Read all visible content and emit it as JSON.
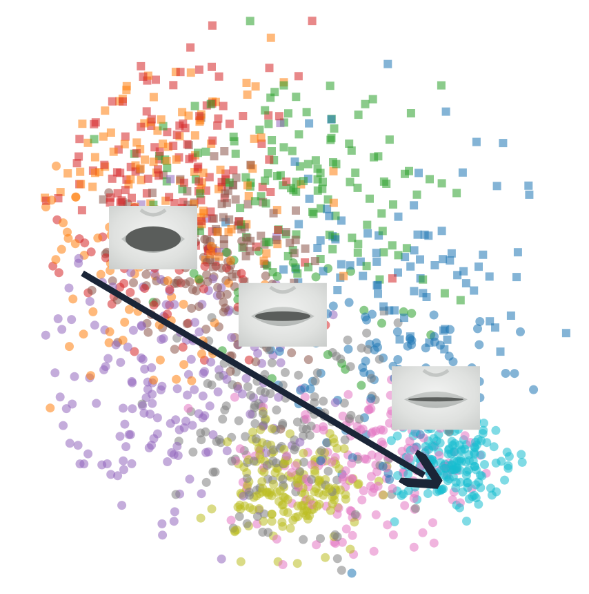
{
  "chart_data": {
    "type": "scatter",
    "title": "",
    "xlabel": "",
    "ylabel": "",
    "grid": false,
    "legend": "none",
    "axes_visible": false,
    "marker_styles": [
      "circle",
      "square"
    ],
    "marker_opacity": 0.55,
    "series": [
      {
        "key": "blue",
        "color": "#1f77b4",
        "center": [
          0.66,
          0.53
        ],
        "spread": [
          0.12,
          0.13
        ]
      },
      {
        "key": "orange",
        "color": "#ff7f0e",
        "center": [
          0.26,
          0.34
        ],
        "spread": [
          0.13,
          0.14
        ]
      },
      {
        "key": "green",
        "color": "#2ca02c",
        "center": [
          0.5,
          0.35
        ],
        "spread": [
          0.12,
          0.14
        ]
      },
      {
        "key": "red",
        "color": "#d62728",
        "center": [
          0.28,
          0.32
        ],
        "spread": [
          0.11,
          0.12
        ]
      },
      {
        "key": "purple",
        "color": "#9467bd",
        "center": [
          0.27,
          0.64
        ],
        "spread": [
          0.12,
          0.13
        ]
      },
      {
        "key": "brown",
        "color": "#8c564b",
        "center": [
          0.37,
          0.45
        ],
        "spread": [
          0.08,
          0.08
        ]
      },
      {
        "key": "pink",
        "color": "#e377c2",
        "center": [
          0.62,
          0.78
        ],
        "spread": [
          0.1,
          0.08
        ]
      },
      {
        "key": "gray",
        "color": "#7f7f7f",
        "center": [
          0.48,
          0.72
        ],
        "spread": [
          0.09,
          0.1
        ]
      },
      {
        "key": "olive",
        "color": "#bcbd22",
        "center": [
          0.5,
          0.82
        ],
        "spread": [
          0.06,
          0.05
        ]
      },
      {
        "key": "cyan",
        "color": "#17becf",
        "center": [
          0.77,
          0.78
        ],
        "spread": [
          0.05,
          0.04
        ]
      }
    ],
    "arrow": {
      "from": [
        0.14,
        0.46
      ],
      "to": [
        0.72,
        0.8
      ],
      "color": "#1a2537"
    },
    "insets": [
      {
        "name": "mouth-open-inset",
        "at": [
          0.26,
          0.4
        ],
        "mouth": "open"
      },
      {
        "name": "mouth-neutral-inset",
        "at": [
          0.48,
          0.53
        ],
        "mouth": "parted"
      },
      {
        "name": "mouth-closed-inset",
        "at": [
          0.74,
          0.67
        ],
        "mouth": "closed"
      }
    ]
  }
}
